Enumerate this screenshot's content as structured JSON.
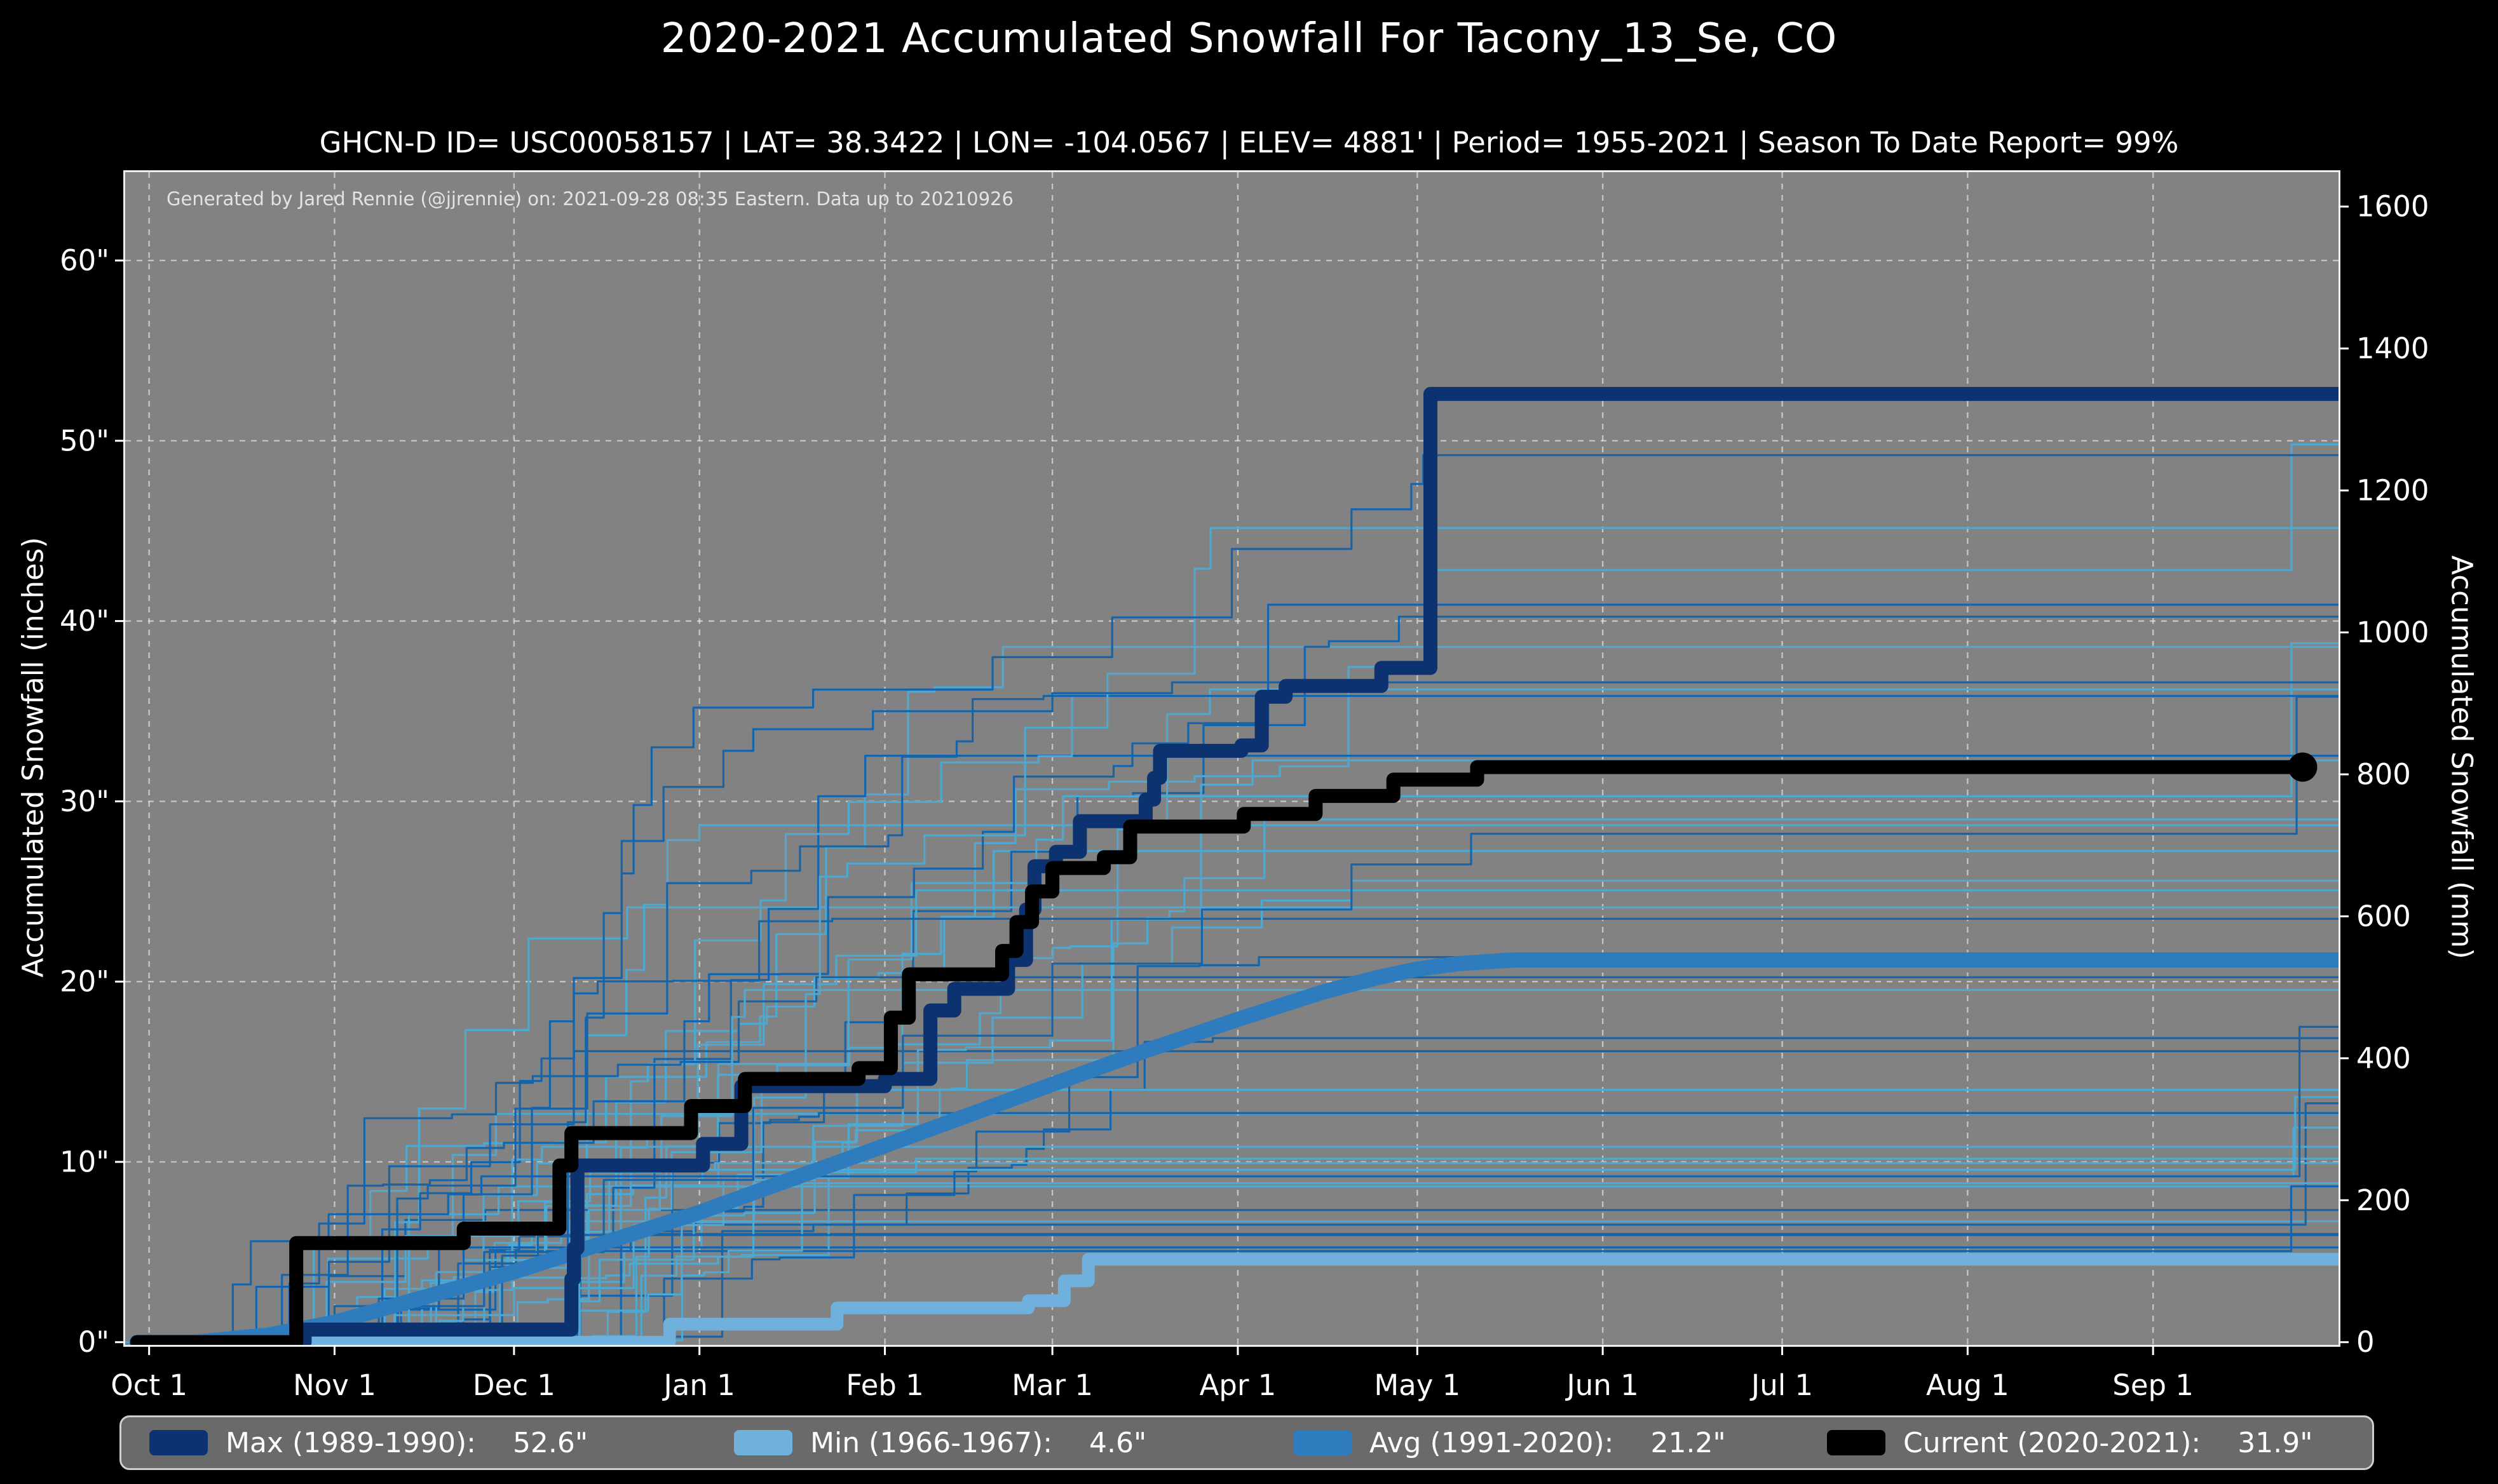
{
  "header": {
    "title": "2020-2021 Accumulated Snowfall For Tacony_13_Se, CO",
    "subtitle": "GHCN-D ID= USC00058157 | LAT= 38.3422 | LON= -104.0567 | ELEV= 4881' | Period= 1955-2021 | Season To Date Report= 99%"
  },
  "annotation": {
    "generated_by": "Generated by Jared Rennie (@jjrennie) on: 2021-09-28 08:35 Eastern. Data up to 20210926"
  },
  "legend": {
    "items": [
      {
        "label": "Max (1989-1990):",
        "value": "52.6\"",
        "color": "#0d3270"
      },
      {
        "label": "Min (1966-1967):",
        "value": "4.6\"",
        "color": "#6fb0dc"
      },
      {
        "label": "Avg (1991-2020):",
        "value": "21.2\"",
        "color": "#2e7cbd"
      },
      {
        "label": "Current (2020-2021):",
        "value": "31.9\"",
        "color": "#000000"
      }
    ]
  },
  "chart_data": {
    "type": "line",
    "title": "2020-2021 Accumulated Snowfall For Tacony_13_Se, CO",
    "plot_bg": "#828282",
    "figure_bg": "#000000",
    "grid": {
      "color": "rgba(240,240,240,0.6)",
      "dash": "9 9"
    },
    "x_range_days": [
      -4,
      366
    ],
    "x_ticks": [
      {
        "label": "Oct 1",
        "day": 0
      },
      {
        "label": "Nov 1",
        "day": 31
      },
      {
        "label": "Dec 1",
        "day": 61
      },
      {
        "label": "Jan 1",
        "day": 92
      },
      {
        "label": "Feb 1",
        "day": 123
      },
      {
        "label": "Mar 1",
        "day": 151
      },
      {
        "label": "Apr 1",
        "day": 182
      },
      {
        "label": "May 1",
        "day": 212
      },
      {
        "label": "Jun 1",
        "day": 243
      },
      {
        "label": "Jul 1",
        "day": 273
      },
      {
        "label": "Aug 1",
        "day": 304
      },
      {
        "label": "Sep 1",
        "day": 335
      }
    ],
    "y_left": {
      "label": "Accumulated Snowfall (inches)",
      "range": [
        -0.15,
        64.9
      ],
      "ticks": [
        {
          "label": "0\"",
          "value": 0
        },
        {
          "label": "10\"",
          "value": 10
        },
        {
          "label": "20\"",
          "value": 20
        },
        {
          "label": "30\"",
          "value": 30
        },
        {
          "label": "40\"",
          "value": 40
        },
        {
          "label": "50\"",
          "value": 50
        },
        {
          "label": "60\"",
          "value": 60
        }
      ]
    },
    "y_right": {
      "label": "Accumulated Snowfall (mm)",
      "mm_per_inch": 25.4,
      "ticks": [
        {
          "label": "0",
          "mm": 0
        },
        {
          "label": "200",
          "mm": 200
        },
        {
          "label": "400",
          "mm": 400
        },
        {
          "label": "600",
          "mm": 600
        },
        {
          "label": "800",
          "mm": 800
        },
        {
          "label": "1000",
          "mm": 1000
        },
        {
          "label": "1200",
          "mm": 1200
        },
        {
          "label": "1400",
          "mm": 1400
        },
        {
          "label": "1600",
          "mm": 1600
        }
      ]
    },
    "series": [
      {
        "name": "Max (1989-1990)",
        "total_inches": 52.6,
        "color": "#0d3270",
        "width": 22,
        "draw": "step",
        "points": [
          [
            -2,
            0
          ],
          [
            25,
            0
          ],
          [
            26,
            0.7
          ],
          [
            70,
            0.7
          ],
          [
            70.6,
            3.5
          ],
          [
            71,
            5.2
          ],
          [
            71.6,
            9.8
          ],
          [
            92,
            9.8
          ],
          [
            92.6,
            11.0
          ],
          [
            98.4,
            11.0
          ],
          [
            99,
            14.2
          ],
          [
            122.4,
            14.2
          ],
          [
            123,
            14.6
          ],
          [
            130,
            14.6
          ],
          [
            130.6,
            18.4
          ],
          [
            134,
            18.4
          ],
          [
            134.6,
            19.6
          ],
          [
            143,
            19.6
          ],
          [
            143.6,
            21.2
          ],
          [
            146,
            21.2
          ],
          [
            146.6,
            24.0
          ],
          [
            147.4,
            24.0
          ],
          [
            148,
            26.4
          ],
          [
            151,
            26.4
          ],
          [
            151.6,
            27.2
          ],
          [
            155,
            27.2
          ],
          [
            155.6,
            28.9
          ],
          [
            166,
            28.9
          ],
          [
            166.6,
            30.1
          ],
          [
            167.4,
            30.1
          ],
          [
            168,
            31.3
          ],
          [
            168.4,
            31.3
          ],
          [
            169,
            32.8
          ],
          [
            182,
            32.8
          ],
          [
            182.6,
            33.1
          ],
          [
            185.4,
            33.1
          ],
          [
            186,
            35.8
          ],
          [
            189.4,
            35.8
          ],
          [
            190,
            36.4
          ],
          [
            205.4,
            36.4
          ],
          [
            206,
            37.4
          ],
          [
            213.4,
            37.4
          ],
          [
            214.2,
            52.6
          ],
          [
            366,
            52.6
          ]
        ]
      },
      {
        "name": "Min (1966-1967)",
        "total_inches": 4.6,
        "color": "#6fb0dc",
        "width": 20,
        "draw": "step",
        "points": [
          [
            -2,
            0
          ],
          [
            86,
            0
          ],
          [
            87,
            1.0
          ],
          [
            114,
            1.0
          ],
          [
            115,
            1.9
          ],
          [
            146,
            1.9
          ],
          [
            147,
            2.3
          ],
          [
            152,
            2.3
          ],
          [
            153,
            3.4
          ],
          [
            156,
            3.4
          ],
          [
            157,
            4.6
          ],
          [
            366,
            4.6
          ]
        ]
      },
      {
        "name": "Avg (1991-2020)",
        "total_inches": 21.2,
        "color": "#2e7cbd",
        "width": 24,
        "draw": "linear",
        "points": [
          [
            -2,
            0
          ],
          [
            8,
            0
          ],
          [
            20,
            0.4
          ],
          [
            31,
            1.1
          ],
          [
            45,
            2.4
          ],
          [
            61,
            3.9
          ],
          [
            75,
            5.4
          ],
          [
            92,
            7.2
          ],
          [
            107,
            9.0
          ],
          [
            123,
            10.9
          ],
          [
            137,
            12.6
          ],
          [
            151,
            14.3
          ],
          [
            166,
            16.1
          ],
          [
            182,
            17.9
          ],
          [
            196,
            19.4
          ],
          [
            205,
            20.2
          ],
          [
            212,
            20.7
          ],
          [
            219,
            21.0
          ],
          [
            228,
            21.2
          ],
          [
            366,
            21.2
          ]
        ]
      },
      {
        "name": "Current (2020-2021)",
        "total_inches": 31.9,
        "color": "#000000",
        "width": 22,
        "draw": "step",
        "end_marker": true,
        "end_day": 360,
        "points": [
          [
            -2,
            0
          ],
          [
            24,
            0
          ],
          [
            24.6,
            5.5
          ],
          [
            52,
            5.5
          ],
          [
            52.6,
            6.3
          ],
          [
            68,
            6.3
          ],
          [
            68.6,
            9.8
          ],
          [
            70,
            9.8
          ],
          [
            70.6,
            11.6
          ],
          [
            90,
            11.6
          ],
          [
            90.6,
            13.1
          ],
          [
            99,
            13.1
          ],
          [
            99.6,
            14.6
          ],
          [
            118,
            14.6
          ],
          [
            118.6,
            15.2
          ],
          [
            123.4,
            15.2
          ],
          [
            124,
            18.0
          ],
          [
            126.4,
            18.0
          ],
          [
            127,
            20.4
          ],
          [
            142,
            20.4
          ],
          [
            142.6,
            21.7
          ],
          [
            144.4,
            21.7
          ],
          [
            145,
            23.3
          ],
          [
            147,
            23.3
          ],
          [
            147.6,
            25.0
          ],
          [
            150.4,
            25.0
          ],
          [
            151,
            26.3
          ],
          [
            159,
            26.3
          ],
          [
            159.6,
            26.9
          ],
          [
            163.4,
            26.9
          ],
          [
            164,
            28.6
          ],
          [
            182.4,
            28.6
          ],
          [
            183,
            29.3
          ],
          [
            194.4,
            29.3
          ],
          [
            195,
            30.3
          ],
          [
            207.4,
            30.3
          ],
          [
            208,
            31.2
          ],
          [
            221.4,
            31.2
          ],
          [
            222,
            31.9
          ],
          [
            360,
            31.9
          ]
        ]
      }
    ],
    "background_seasons": {
      "note": "thin unlabeled historical season traces (1955-2021)",
      "count": 40,
      "seed": 11,
      "width": 3.2,
      "colors": [
        "#1565ad",
        "#4fa8d0"
      ],
      "featured": [
        {
          "color": "#1565ad",
          "points": [
            [
              13,
              0
            ],
            [
              14,
              3.2
            ],
            [
              16,
              3.2
            ],
            [
              17,
              5.6
            ],
            [
              29,
              5.6
            ],
            [
              30,
              7.1
            ],
            [
              49,
              7.1
            ],
            [
              50,
              8.2
            ],
            [
              63,
              8.2
            ],
            [
              64,
              13.0
            ],
            [
              66,
              13.0
            ],
            [
              67,
              17.8
            ],
            [
              70,
              17.8
            ],
            [
              71,
              20.2
            ],
            [
              78,
              20.2
            ],
            [
              79,
              26.0
            ],
            [
              80.4,
              26.0
            ],
            [
              81,
              29.8
            ],
            [
              83,
              29.8
            ],
            [
              84,
              33.0
            ],
            [
              90,
              33.0
            ],
            [
              91,
              35.2
            ],
            [
              110,
              35.2
            ],
            [
              111,
              36.2
            ],
            [
              140,
              36.2
            ],
            [
              141,
              38.0
            ],
            [
              160,
              38.0
            ],
            [
              161,
              40.2
            ],
            [
              180,
              40.2
            ],
            [
              181,
              44.0
            ],
            [
              200,
              44.0
            ],
            [
              201,
              46.2
            ],
            [
              210,
              46.2
            ],
            [
              211,
              47.6
            ],
            [
              212.4,
              47.6
            ],
            [
              213,
              49.2
            ],
            [
              366,
              49.2
            ]
          ]
        },
        {
          "color": "#1565ad",
          "points": [
            [
              58,
              0
            ],
            [
              59,
              4.8
            ],
            [
              69,
              4.8
            ],
            [
              70,
              12.2
            ],
            [
              72,
              12.2
            ],
            [
              73,
              18.0
            ],
            [
              75,
              18.0
            ],
            [
              76,
              23.8
            ],
            [
              78,
              23.8
            ],
            [
              79,
              27.8
            ],
            [
              85,
              27.8
            ],
            [
              86,
              30.8
            ],
            [
              95,
              30.8
            ],
            [
              96,
              32.8
            ],
            [
              100,
              32.8
            ],
            [
              101,
              34.0
            ],
            [
              120,
              34.0
            ],
            [
              121,
              35.0
            ],
            [
              150,
              35.0
            ],
            [
              151,
              36.0
            ],
            [
              170,
              36.0
            ],
            [
              171,
              36.6
            ],
            [
              366,
              36.6
            ]
          ]
        },
        {
          "color": "#4fa8d0",
          "points": [
            [
              40,
              0
            ],
            [
              41,
              1.5
            ],
            [
              60,
              1.5
            ],
            [
              61,
              3.0
            ],
            [
              80,
              3.0
            ],
            [
              81,
              6.5
            ],
            [
              95,
              6.5
            ],
            [
              96,
              9.0
            ],
            [
              110,
              9.0
            ],
            [
              111,
              12.0
            ],
            [
              125,
              12.0
            ],
            [
              126,
              15.5
            ],
            [
              140,
              15.5
            ],
            [
              141,
              18.0
            ],
            [
              155,
              18.0
            ],
            [
              156,
              21.0
            ],
            [
              170,
              21.0
            ],
            [
              171,
              23.0
            ],
            [
              185,
              23.0
            ],
            [
              186,
              24.5
            ],
            [
              200,
              24.5
            ],
            [
              201,
              25.6
            ],
            [
              366,
              25.6
            ]
          ]
        },
        {
          "color": "#1565ad",
          "points": [
            [
              30,
              0
            ],
            [
              31,
              2
            ],
            [
              55,
              2
            ],
            [
              56,
              5
            ],
            [
              75,
              5
            ],
            [
              76,
              9
            ],
            [
              100,
              9
            ],
            [
              101,
              13
            ],
            [
              125,
              13
            ],
            [
              126,
              17
            ],
            [
              150,
              17
            ],
            [
              151,
              21
            ],
            [
              175,
              21
            ],
            [
              176,
              24
            ],
            [
              200,
              24
            ],
            [
              201,
              26.5
            ],
            [
              220,
              26.5
            ],
            [
              221,
              28.2
            ],
            [
              358,
              28.2
            ],
            [
              359,
              35.8
            ],
            [
              366,
              35.8
            ]
          ]
        }
      ]
    }
  }
}
